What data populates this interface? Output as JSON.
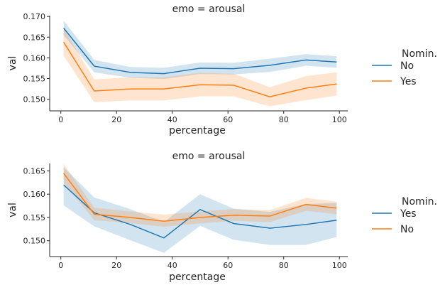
{
  "chart_data": [
    {
      "type": "line",
      "title": "emo = arousal",
      "xlabel": "percentage",
      "ylabel": "val",
      "xlim": [
        -4,
        103
      ],
      "ylim": [
        0.1472,
        0.1702
      ],
      "xticks": [
        0,
        20,
        40,
        60,
        80,
        100
      ],
      "yticks": [
        0.15,
        0.155,
        0.16,
        0.165,
        0.17
      ],
      "ytick_labels": [
        "0.150",
        "0.155",
        "0.160",
        "0.165",
        "0.170"
      ],
      "grid": false,
      "legend": {
        "title": "Nomin.",
        "position": "right"
      },
      "x": [
        1,
        12,
        25,
        37,
        50,
        62,
        75,
        88,
        99
      ],
      "series": [
        {
          "name": "No",
          "color": "#1f77b4",
          "values": [
            0.1672,
            0.158,
            0.1565,
            0.1562,
            0.1575,
            0.1574,
            0.1582,
            0.1595,
            0.159
          ],
          "ci_low": [
            0.1655,
            0.1565,
            0.1552,
            0.1549,
            0.1561,
            0.156,
            0.1566,
            0.1581,
            0.1576
          ],
          "ci_high": [
            0.169,
            0.1595,
            0.1578,
            0.1576,
            0.1589,
            0.1588,
            0.1598,
            0.1609,
            0.1604
          ]
        },
        {
          "name": "Yes",
          "color": "#ff7f0e",
          "values": [
            0.1638,
            0.152,
            0.1525,
            0.1525,
            0.1535,
            0.1534,
            0.1506,
            0.1527,
            0.1537
          ],
          "ci_low": [
            0.1605,
            0.1493,
            0.1497,
            0.1497,
            0.1507,
            0.1507,
            0.1483,
            0.1498,
            0.1509
          ],
          "ci_high": [
            0.1671,
            0.1548,
            0.1553,
            0.1553,
            0.1564,
            0.1562,
            0.1529,
            0.1556,
            0.1565
          ]
        }
      ]
    },
    {
      "type": "line",
      "title": "emo = arousal",
      "xlabel": "percentage",
      "ylabel": "val",
      "xlim": [
        -4,
        103
      ],
      "ylim": [
        0.1466,
        0.1666
      ],
      "xticks": [
        0,
        20,
        40,
        60,
        80,
        100
      ],
      "yticks": [
        0.15,
        0.155,
        0.16,
        0.165
      ],
      "ytick_labels": [
        "0.150",
        "0.155",
        "0.160",
        "0.165"
      ],
      "grid": false,
      "legend": {
        "title": "Nomin.",
        "position": "right"
      },
      "x": [
        1,
        12,
        25,
        37,
        50,
        62,
        75,
        88,
        99
      ],
      "series": [
        {
          "name": "Yes",
          "color": "#1f77b4",
          "values": [
            0.162,
            0.156,
            0.1535,
            0.1506,
            0.1567,
            0.1537,
            0.1527,
            0.1535,
            0.1544
          ],
          "ci_low": [
            0.1576,
            0.1531,
            0.1501,
            0.1474,
            0.1532,
            0.1502,
            0.1491,
            0.1491,
            0.1508
          ],
          "ci_high": [
            0.1658,
            0.1593,
            0.1568,
            0.154,
            0.16,
            0.1569,
            0.1562,
            0.1579,
            0.1581
          ]
        },
        {
          "name": "No",
          "color": "#ff7f0e",
          "values": [
            0.1645,
            0.1557,
            0.155,
            0.1542,
            0.155,
            0.1555,
            0.1553,
            0.1578,
            0.157
          ],
          "ci_low": [
            0.1625,
            0.1544,
            0.1538,
            0.153,
            0.1537,
            0.1543,
            0.154,
            0.1564,
            0.1557
          ],
          "ci_high": [
            0.1665,
            0.1571,
            0.1563,
            0.1556,
            0.1563,
            0.1568,
            0.1566,
            0.1592,
            0.1584
          ]
        }
      ]
    }
  ]
}
